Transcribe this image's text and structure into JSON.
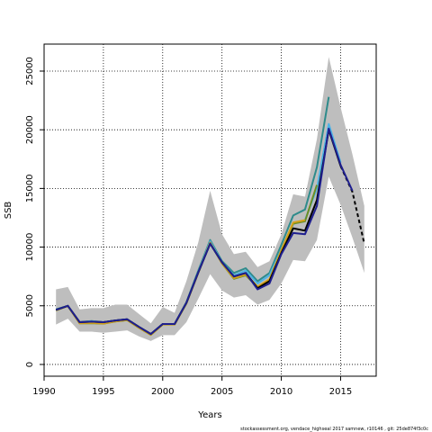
{
  "chart_data": {
    "type": "line",
    "xlabel": "Years",
    "ylabel": "SSB",
    "xlim": [
      1990,
      2018
    ],
    "ylim": [
      -1000,
      27300
    ],
    "xticks": [
      1990,
      1995,
      2000,
      2005,
      2010,
      2015
    ],
    "yticks": [
      0,
      5000,
      10000,
      15000,
      20000,
      25000
    ],
    "grid": true,
    "footer": "stockassessment.org, vendace_highseal 2017 samnew, r10146 , git: 25de874f3c0c",
    "confidence_band": {
      "color": "#bebebe",
      "x": [
        1991,
        1992,
        1993,
        1994,
        1995,
        1996,
        1997,
        1998,
        1999,
        2000,
        2001,
        2002,
        2003,
        2004,
        2005,
        2006,
        2007,
        2008,
        2009,
        2010,
        2011,
        2012,
        2013,
        2014,
        2015,
        2016,
        2017
      ],
      "upper": [
        6400,
        6600,
        4700,
        4800,
        4800,
        5100,
        5100,
        4300,
        3500,
        4900,
        4400,
        7100,
        10400,
        14800,
        11100,
        9400,
        9600,
        8300,
        8800,
        11100,
        14500,
        14300,
        19200,
        26200,
        21900,
        17900,
        13500
      ],
      "lower": [
        3400,
        3900,
        2800,
        2800,
        2700,
        2800,
        2900,
        2400,
        2000,
        2500,
        2500,
        3600,
        5600,
        7700,
        6300,
        5700,
        5900,
        5100,
        5500,
        6900,
        8900,
        8800,
        10600,
        16000,
        13600,
        10800,
        7800
      ]
    },
    "series": [
      {
        "color": "#2e8b8b",
        "dash": false,
        "x": [
          1991,
          1992,
          1993,
          1994,
          1995,
          1996,
          1997,
          1998,
          1999,
          2000,
          2001,
          2002,
          2003,
          2004,
          2005,
          2006,
          2007,
          2008,
          2009,
          2010,
          2011,
          2012,
          2013,
          2014
        ],
        "values": [
          4700,
          5000,
          3600,
          3700,
          3600,
          3750,
          3850,
          3200,
          2600,
          3450,
          3450,
          5300,
          8000,
          10600,
          8800,
          7800,
          8200,
          7100,
          7800,
          10200,
          12700,
          13200,
          16800,
          22800
        ]
      },
      {
        "color": "#4db3e6",
        "dash": false,
        "x": [
          1991,
          1992,
          1993,
          1994,
          1995,
          1996,
          1997,
          1998,
          1999,
          2000,
          2001,
          2002,
          2003,
          2004,
          2005,
          2006,
          2007,
          2008,
          2009,
          2010,
          2011,
          2012,
          2013,
          2014,
          2015
        ],
        "values": [
          4650,
          4980,
          3580,
          3680,
          3580,
          3720,
          3830,
          3180,
          2580,
          3420,
          3420,
          5250,
          7900,
          10500,
          8700,
          7600,
          8000,
          6900,
          7600,
          9800,
          12000,
          12300,
          15000,
          20500,
          17200
        ]
      },
      {
        "color": "#6b8e23",
        "dash": false,
        "x": [
          1991,
          1992,
          1993,
          1994,
          1995,
          1996,
          1997,
          1998,
          1999,
          2000,
          2001,
          2002,
          2003,
          2004,
          2005,
          2006,
          2007,
          2008,
          2009,
          2010,
          2011,
          2012,
          2013
        ],
        "values": [
          4600,
          4980,
          3500,
          3520,
          3480,
          3660,
          3780,
          3120,
          2520,
          3400,
          3400,
          5200,
          7800,
          10350,
          8600,
          7300,
          7600,
          6600,
          7200,
          9700,
          12000,
          12200,
          15300
        ]
      },
      {
        "color": "#d4a017",
        "dash": false,
        "x": [
          1991,
          1992,
          1993,
          1994,
          1995,
          1996,
          1997,
          1998,
          1999,
          2000,
          2001,
          2002,
          2003,
          2004,
          2005,
          2006,
          2007,
          2008,
          2009,
          2010,
          2011,
          2012
        ],
        "values": [
          4620,
          4990,
          3510,
          3540,
          3490,
          3670,
          3790,
          3130,
          2530,
          3410,
          3410,
          5210,
          7820,
          10380,
          8620,
          7350,
          7650,
          6650,
          7250,
          9750,
          12100,
          12300
        ]
      },
      {
        "color": "#000000",
        "dash": false,
        "x": [
          1991,
          1992,
          1993,
          1994,
          1995,
          1996,
          1997,
          1998,
          1999,
          2000,
          2001,
          2002,
          2003,
          2004,
          2005,
          2006,
          2007,
          2008,
          2009,
          2010,
          2011,
          2012,
          2013,
          2014,
          2015
        ],
        "values": [
          4650,
          5000,
          3600,
          3650,
          3600,
          3750,
          3850,
          3200,
          2600,
          3450,
          3450,
          5250,
          7850,
          10300,
          8700,
          7500,
          7800,
          6500,
          7100,
          9500,
          11600,
          11400,
          14000,
          20000,
          16900
        ]
      },
      {
        "color": "#000000",
        "dash": true,
        "x": [
          2015,
          2016,
          2017
        ],
        "values": [
          16900,
          14700,
          10300
        ]
      },
      {
        "color": "#1f1f8f",
        "dash": false,
        "x": [
          1991,
          1992,
          1993,
          1994,
          1995,
          1996,
          1997,
          1998,
          1999,
          2000,
          2001,
          2002,
          2003,
          2004,
          2005,
          2006,
          2007,
          2008,
          2009,
          2010,
          2011,
          2012,
          2013,
          2014,
          2015,
          2016
        ],
        "values": [
          4650,
          5000,
          3600,
          3650,
          3600,
          3750,
          3850,
          3200,
          2600,
          3450,
          3450,
          5250,
          7850,
          10300,
          8700,
          7500,
          7800,
          6400,
          6900,
          9400,
          11200,
          11100,
          13500,
          20100,
          17000,
          14800
        ]
      }
    ]
  }
}
